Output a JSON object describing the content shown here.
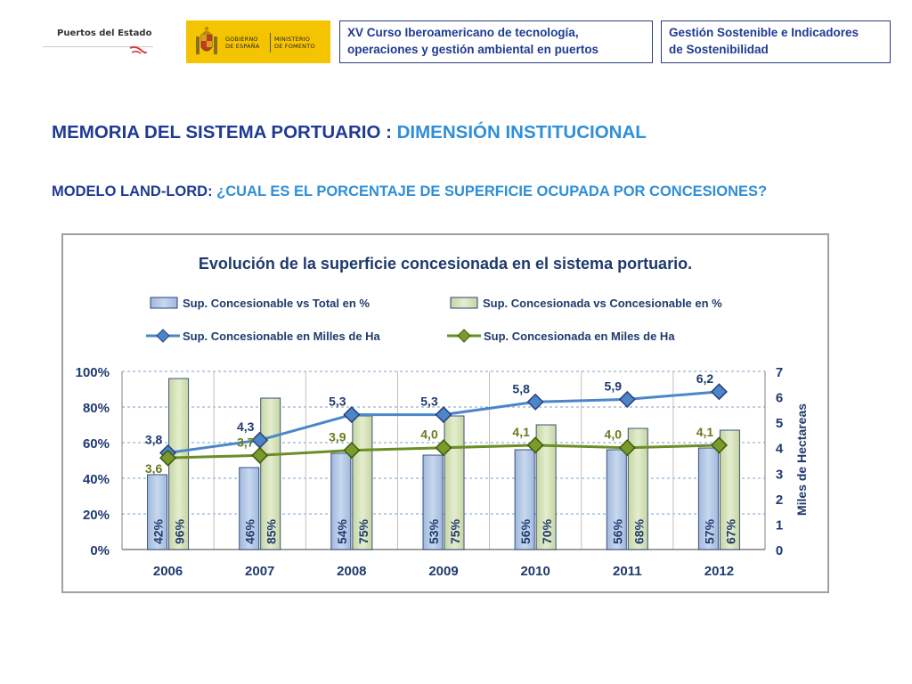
{
  "header": {
    "logo_puertos": "Puertos del Estado",
    "logo_gob_line1": "GOBIERNO",
    "logo_gob_line2": "DE ESPAÑA",
    "logo_min_line1": "MINISTERIO",
    "logo_min_line2": "DE FOMENTO",
    "course_line1": "XV Curso Iberoamericano de tecnología,",
    "course_line2": "operaciones y gestión ambiental en puertos",
    "topic_line1": "Gestión Sostenible e Indicadores",
    "topic_line2": "de Sostenibilidad"
  },
  "title": {
    "prefix": "MEMORIA DEL SISTEMA PORTUARIO : ",
    "accent": "DIMENSIÓN INSTITUCIONAL"
  },
  "subtitle": {
    "prefix": "MODELO LAND-LORD: ",
    "accent": "¿CUAL ES EL PORCENTAJE DE SUPERFICIE OCUPADA POR CONCESIONES?"
  },
  "colors": {
    "bar_total": "#b8cce4",
    "bar_concesionada": "#d7e4bd",
    "line_concesionable": "#4a86c8",
    "line_concesionada": "#6b8e23",
    "label_concesionable": "#1f3a6e",
    "label_concesionada": "#6b7a1e"
  },
  "chart_data": {
    "type": "bar",
    "title": "Evolución de la superficie concesionada en el sistema portuario.",
    "categories": [
      "2006",
      "2007",
      "2008",
      "2009",
      "2010",
      "2011",
      "2012"
    ],
    "y_left": {
      "ticks": [
        "0%",
        "20%",
        "40%",
        "60%",
        "80%",
        "100%"
      ],
      "range": [
        0,
        100
      ]
    },
    "y_right": {
      "label": "Miles de Hectareas",
      "ticks": [
        "0",
        "1",
        "2",
        "3",
        "4",
        "5",
        "6",
        "7"
      ],
      "range": [
        0,
        7
      ]
    },
    "legend_placement": "top",
    "grid": true,
    "bar_series": [
      {
        "name": "Sup. Concesionable vs Total en %",
        "values": [
          42,
          46,
          54,
          53,
          56,
          56,
          57
        ],
        "labels": [
          "42%",
          "46%",
          "54%",
          "53%",
          "56%",
          "56%",
          "57%"
        ]
      },
      {
        "name": "Sup. Concesionada vs Concesionable en %",
        "values": [
          96,
          85,
          75,
          75,
          70,
          68,
          67
        ],
        "labels": [
          "96%",
          "85%",
          "75%",
          "75%",
          "70%",
          "68%",
          "67%"
        ]
      }
    ],
    "line_series": [
      {
        "name": "Sup. Concesionable en Milles de Ha",
        "values": [
          3.8,
          4.3,
          5.3,
          5.3,
          5.8,
          5.9,
          6.2
        ],
        "labels": [
          "3,8",
          "4,3",
          "5,3",
          "5,3",
          "5,8",
          "5,9",
          "6,2"
        ]
      },
      {
        "name": "Sup. Concesionada en Miles de Ha",
        "values": [
          3.6,
          3.7,
          3.9,
          4.0,
          4.1,
          4.0,
          4.1
        ],
        "labels": [
          "3,6",
          "3,7",
          "3,9",
          "4,0",
          "4,1",
          "4,0",
          "4,1"
        ]
      }
    ]
  }
}
